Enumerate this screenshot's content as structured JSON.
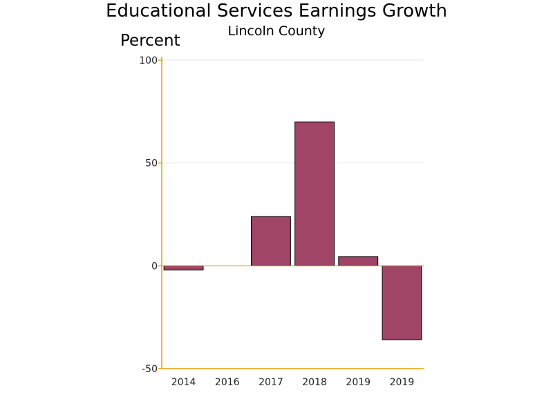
{
  "chart_data": {
    "type": "bar",
    "title": "Educational Services Earnings Growth",
    "subtitle": "Lincoln County",
    "ylabel": "Percent",
    "xlabel": "",
    "categories": [
      "2014",
      "2016",
      "2017",
      "2018",
      "2019",
      "2019"
    ],
    "values": [
      -2,
      0,
      24,
      70,
      4.5,
      -36
    ],
    "ylim": [
      -50,
      100
    ],
    "yticks": [
      "-50",
      "0",
      "50",
      "100"
    ],
    "grid": true,
    "legend": "none"
  },
  "colors": {
    "bar_fill": "#a04468",
    "axis": "#e0a000",
    "grid": "#e6e6e6",
    "bar_stroke": "#000000"
  }
}
